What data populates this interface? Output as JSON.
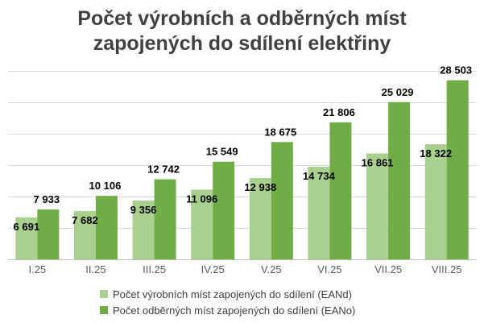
{
  "chart_data": {
    "type": "bar",
    "title_lines": [
      "Počet výrobních a odběrných míst",
      "zapojených do sdílení elektřiny"
    ],
    "categories": [
      "I.25",
      "II.25",
      "III.25",
      "IV.25",
      "V.25",
      "VI.25",
      "VII.25",
      "VIII.25"
    ],
    "series": [
      {
        "name": "Počet výrobních míst zapojených do sdílení (EANd)",
        "color": "#a9d08e",
        "values": [
          6691,
          7682,
          9356,
          11096,
          12938,
          14734,
          16861,
          18322
        ],
        "labels": [
          "6 691",
          "7 682",
          "9 356",
          "11 096",
          "12 938",
          "14 734",
          "16 861",
          "18 322"
        ]
      },
      {
        "name": "Počet odběrných míst zapojených do sdílení (EANo)",
        "color": "#70ad47",
        "values": [
          7933,
          10106,
          12742,
          15549,
          18675,
          21806,
          25029,
          28503
        ],
        "labels": [
          "7 933",
          "10 106",
          "12 742",
          "15 549",
          "18 675",
          "21 806",
          "25 029",
          "28 503"
        ]
      }
    ],
    "ylim": [
      0,
      30000
    ],
    "grid": true,
    "legend_position": "bottom",
    "xlabel": "",
    "ylabel": ""
  }
}
